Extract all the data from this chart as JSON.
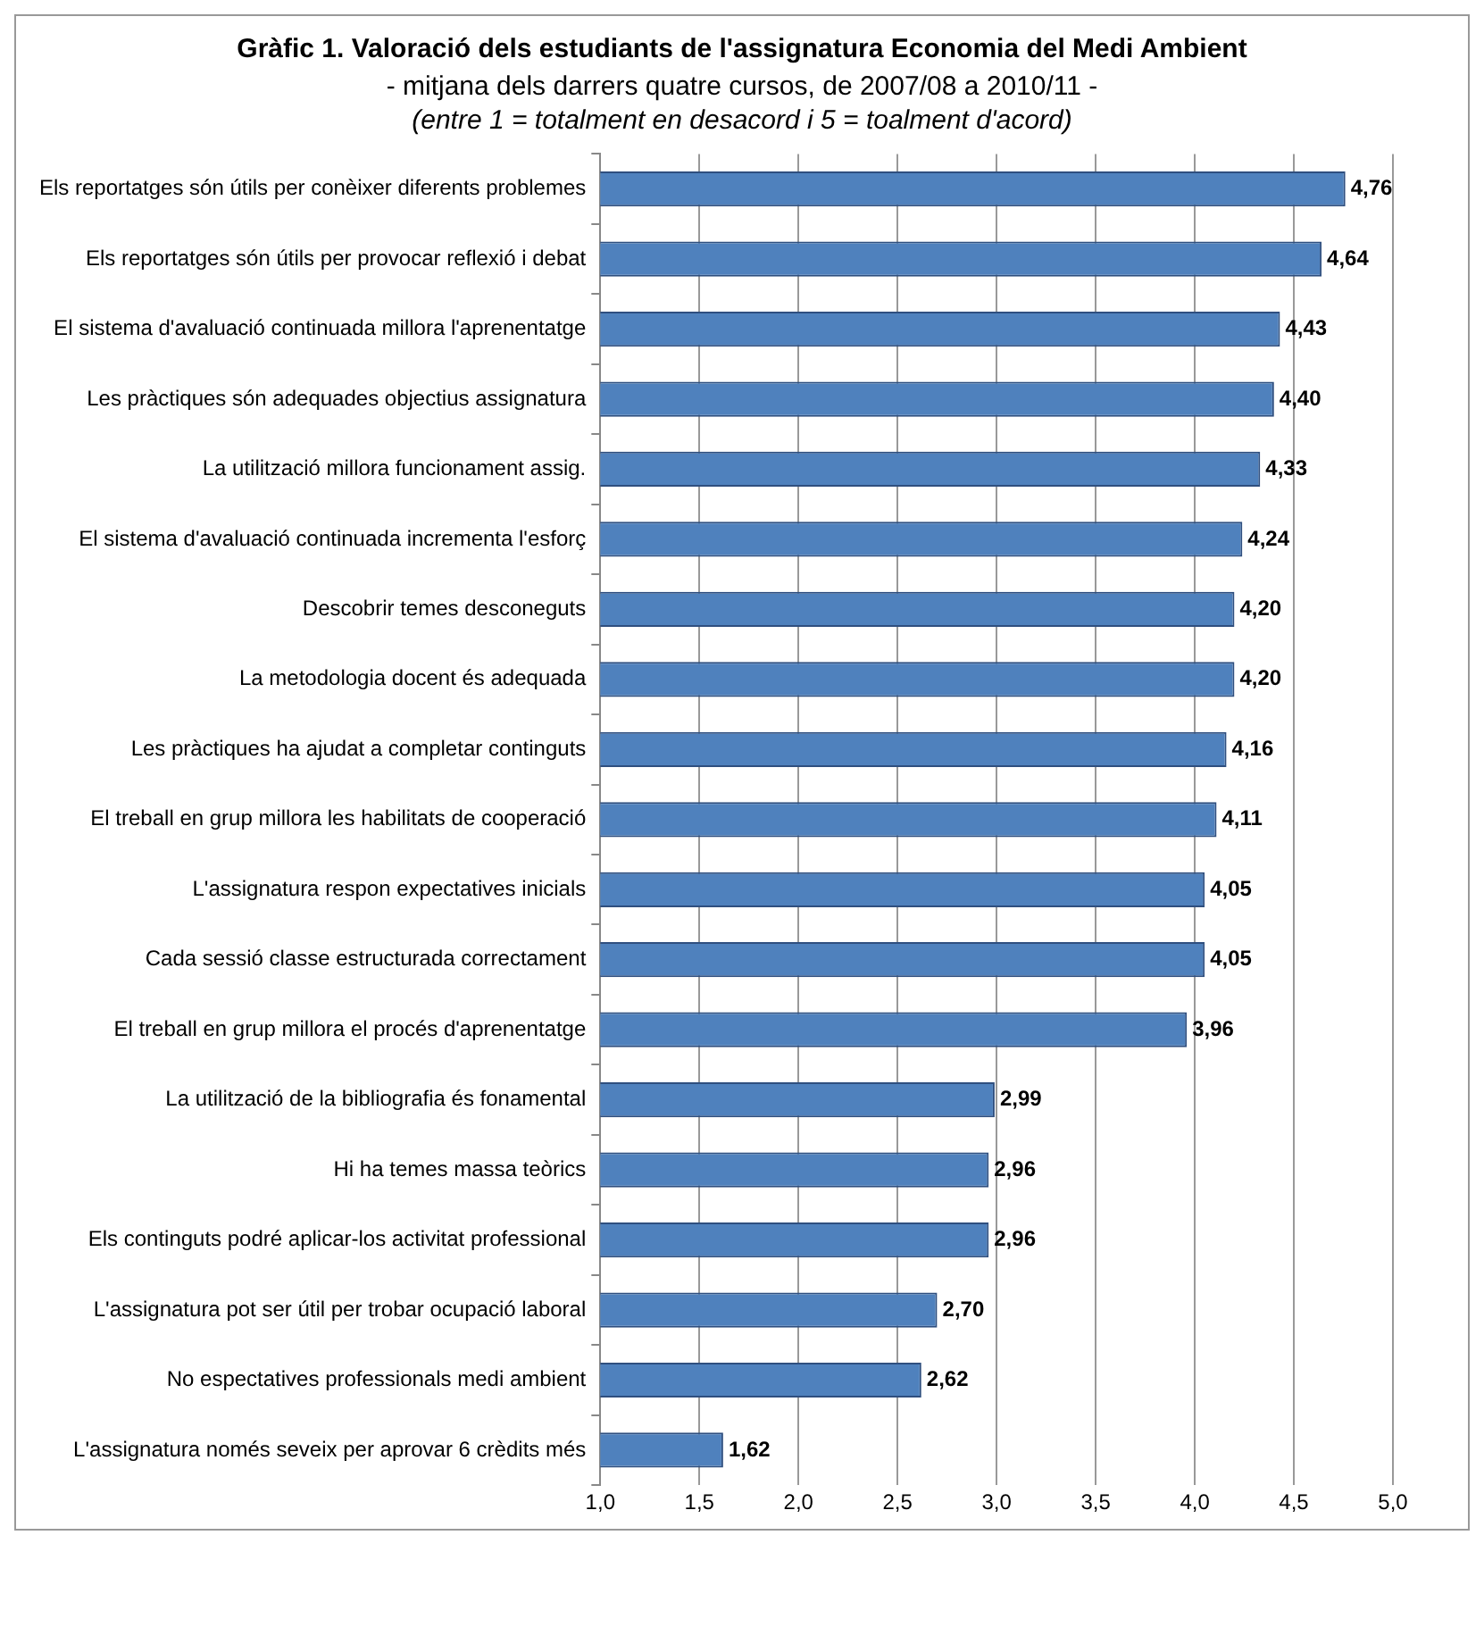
{
  "chart_data": {
    "type": "bar",
    "orientation": "horizontal",
    "title": "Gràfic 1. Valoració dels estudiants de l'assignatura Economia del Medi Ambient",
    "subtitle": "- mitjana dels darrers quatre cursos, de 2007/08 a 2010/11 -",
    "annotations": [
      "(entre 1 = totalment en desacord i 5 = toalment d'acord)"
    ],
    "categories": [
      "Els reportatges són útils per conèixer diferents problemes",
      "Els reportatges són útils per provocar reflexió i debat",
      "El sistema d'avaluació continuada millora l'aprenentatge",
      "Les pràctiques són adequades objectius assignatura",
      "La utilització millora funcionament assig.",
      "El sistema d'avaluació continuada incrementa l'esforç",
      "Descobrir temes desconeguts",
      "La metodologia docent és adequada",
      "Les pràctiques ha ajudat a completar continguts",
      "El treball en grup millora les habilitats de cooperació",
      "L'assignatura respon expectatives inicials",
      "Cada sessió classe estructurada correctament",
      "El treball en grup millora el procés d'aprenentatge",
      "La utilització de la bibliografia és fonamental",
      "Hi ha temes massa teòrics",
      "Els continguts podré aplicar-los activitat professional",
      "L'assignatura pot ser útil per trobar ocupació laboral",
      "No espectatives professionals medi ambient",
      "L'assignatura només seveix per aprovar 6 crèdits més"
    ],
    "values": [
      4.76,
      4.64,
      4.43,
      4.4,
      4.33,
      4.24,
      4.2,
      4.2,
      4.16,
      4.11,
      4.05,
      4.05,
      3.96,
      2.99,
      2.96,
      2.96,
      2.7,
      2.62,
      1.62
    ],
    "value_labels": [
      "4,76",
      "4,64",
      "4,43",
      "4,40",
      "4,33",
      "4,24",
      "4,20",
      "4,20",
      "4,16",
      "4,11",
      "4,05",
      "4,05",
      "3,96",
      "2,99",
      "2,96",
      "2,96",
      "2,70",
      "2,62",
      "1,62"
    ],
    "color": "#4f81bd",
    "xlim": [
      1,
      5
    ],
    "xticks": [
      {
        "value": 1,
        "label": "1,0"
      },
      {
        "value": 1.5,
        "label": "1,5"
      },
      {
        "value": 2,
        "label": "2,0"
      },
      {
        "value": 2.5,
        "label": "2,5"
      },
      {
        "value": 3,
        "label": "3,0"
      },
      {
        "value": 3.5,
        "label": "3,5"
      },
      {
        "value": 4,
        "label": "4,0"
      },
      {
        "value": 4.5,
        "label": "4,5"
      },
      {
        "value": 5,
        "label": "5,0"
      }
    ],
    "grid": "x",
    "legend": false
  }
}
